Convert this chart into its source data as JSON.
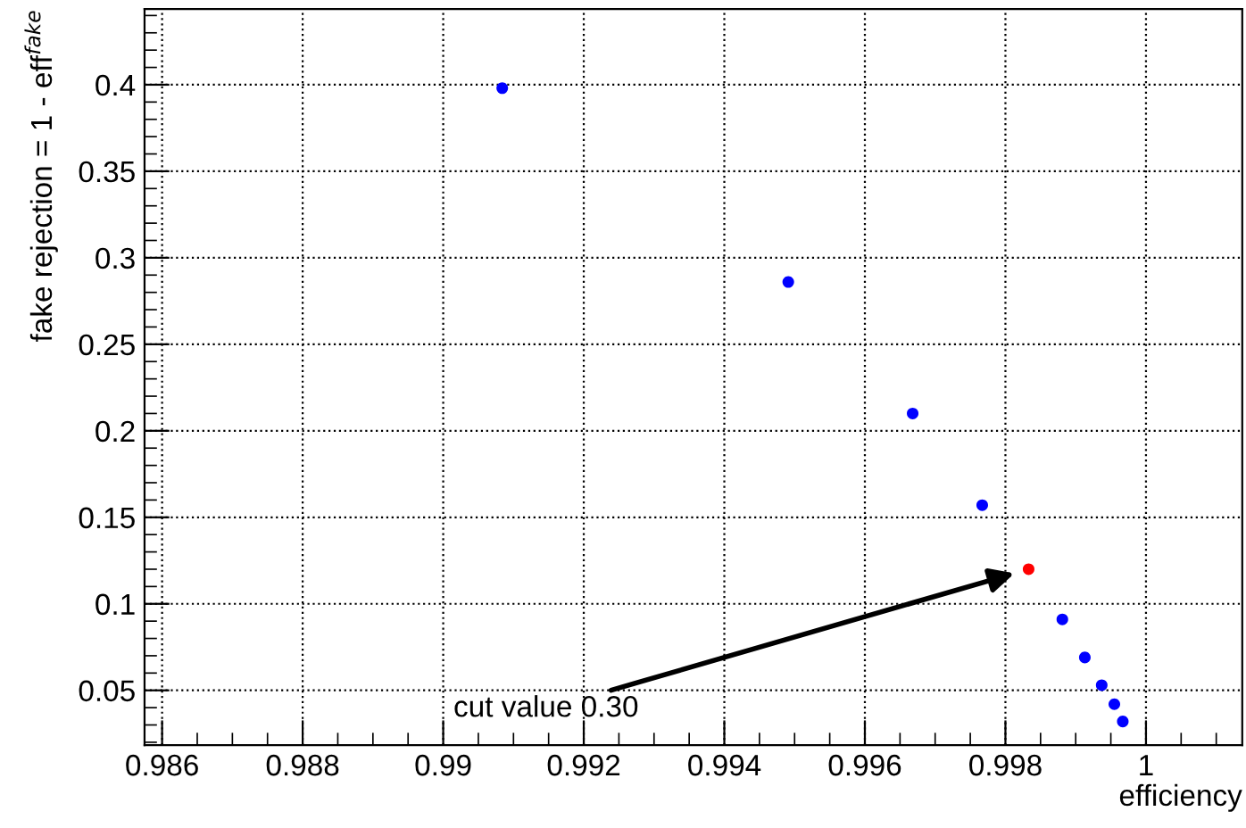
{
  "chart_data": {
    "type": "scatter",
    "xlabel": "efficiency",
    "ylabel": "fake rejection = 1 - eff$^{fake}$",
    "series": [
      {
        "color": "#0000ff",
        "x": [
          0.99084,
          0.99491,
          0.99668,
          0.99767,
          0.99881,
          0.99913,
          0.99937,
          0.99955,
          0.99967
        ],
        "values": [
          0.398,
          0.286,
          0.21,
          0.157,
          0.091,
          0.069,
          0.053,
          0.042,
          0.032
        ]
      },
      {
        "color": "#ff0000",
        "x": [
          0.99833
        ],
        "values": [
          0.12
        ]
      }
    ],
    "annotations": [
      "cut value 0.30"
    ],
    "xlim": [
      0.98575,
      1.00137
    ],
    "ylim": [
      0.0183,
      0.4437
    ],
    "xticks": [
      0.986,
      0.988,
      0.99,
      0.992,
      0.994,
      0.996,
      0.998,
      1
    ],
    "yticks": [
      0.05,
      0.1,
      0.15,
      0.2,
      0.25,
      0.3,
      0.35,
      0.4
    ],
    "grid": true,
    "marker": "circle"
  }
}
